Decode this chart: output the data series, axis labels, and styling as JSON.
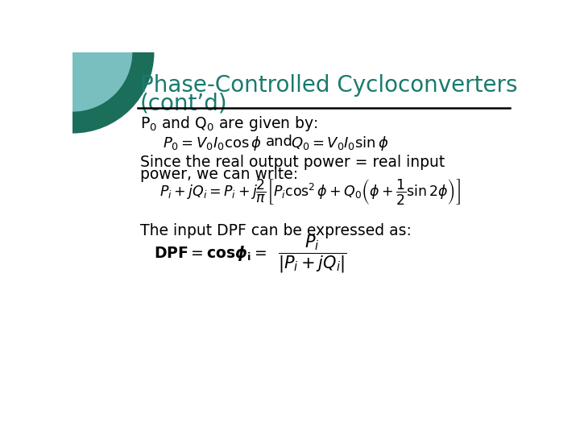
{
  "title_line1": "Phase-Controlled Cycloconverters",
  "title_line2": "(cont’d)",
  "title_color": "#1a7a6e",
  "background_color": "#ffffff",
  "body_text_color": "#000000",
  "teal_dark": "#1a6e5a",
  "teal_light": "#7abfbf",
  "line_color": "#000000",
  "formula1_left": "P_0 = V_0 I_0 \\cos\\phi",
  "formula1_right": "Q_0 = V_0 I_0 \\sin\\phi",
  "formula3": "P_i + jQ_i = P_i + j\\dfrac{2}{\\pi}\\left[P_i \\cos^2\\phi + Q_0\\left(\\phi + \\dfrac{1}{2}\\sin 2\\phi\\right)\\right]",
  "formula4_right": "\\dfrac{P_i}{|P_i + jQ_i|}"
}
